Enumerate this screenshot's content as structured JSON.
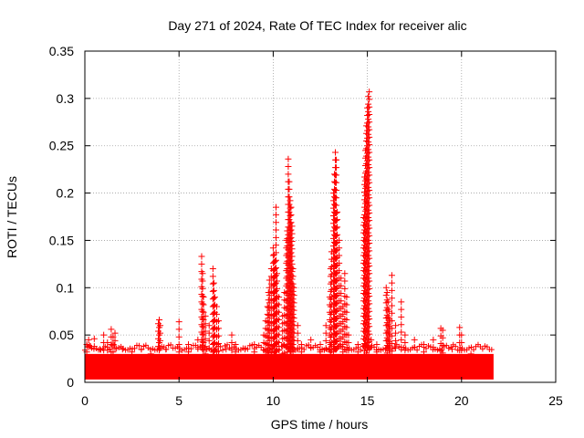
{
  "chart_data": {
    "type": "scatter",
    "title": "Day 271 of 2024, Rate Of TEC Index for receiver alic",
    "xlabel": "GPS time / hours",
    "ylabel": "ROTI / TECUs",
    "xlim": [
      0,
      25
    ],
    "ylim": [
      0,
      0.35
    ],
    "xticks": [
      0,
      5,
      10,
      15,
      20,
      25
    ],
    "yticks": [
      0,
      0.05,
      0.1,
      0.15,
      0.2,
      0.25,
      0.3,
      0.35
    ],
    "grid": true,
    "legend": "none",
    "marker": "plus",
    "color": "#ff0000",
    "baseline_band": {
      "x_range": [
        0,
        21.7
      ],
      "y_range": [
        0.003,
        0.03
      ]
    },
    "series": [
      {
        "values": [
          [
            0.1,
            0.04
          ],
          [
            0.2,
            0.045
          ],
          [
            0.3,
            0.038
          ],
          [
            0.5,
            0.046
          ],
          [
            0.8,
            0.035
          ],
          [
            1.0,
            0.05
          ],
          [
            1.2,
            0.042
          ],
          [
            1.4,
            0.056
          ],
          [
            1.5,
            0.048
          ],
          [
            1.6,
            0.052
          ],
          [
            2.0,
            0.035
          ],
          [
            2.5,
            0.032
          ],
          [
            3.0,
            0.035
          ],
          [
            3.5,
            0.03
          ],
          [
            3.9,
            0.062
          ],
          [
            3.95,
            0.066
          ],
          [
            4.0,
            0.06
          ],
          [
            4.3,
            0.035
          ],
          [
            5.0,
            0.064
          ],
          [
            5.5,
            0.04
          ],
          [
            6.0,
            0.045
          ],
          [
            6.2,
            0.133
          ],
          [
            6.25,
            0.115
          ],
          [
            6.3,
            0.09
          ],
          [
            6.4,
            0.07
          ],
          [
            6.6,
            0.06
          ],
          [
            6.8,
            0.12
          ],
          [
            6.85,
            0.105
          ],
          [
            6.9,
            0.09
          ],
          [
            7.0,
            0.08
          ],
          [
            7.1,
            0.065
          ],
          [
            7.5,
            0.035
          ],
          [
            7.8,
            0.05
          ],
          [
            8.0,
            0.04
          ],
          [
            8.5,
            0.035
          ],
          [
            9.0,
            0.04
          ],
          [
            9.5,
            0.05
          ],
          [
            9.6,
            0.065
          ],
          [
            9.7,
            0.08
          ],
          [
            9.75,
            0.095
          ],
          [
            9.8,
            0.108
          ],
          [
            9.9,
            0.12
          ],
          [
            10.0,
            0.142
          ],
          [
            10.05,
            0.135
          ],
          [
            10.1,
            0.128
          ],
          [
            10.15,
            0.185
          ],
          [
            10.2,
            0.115
          ],
          [
            10.3,
            0.09
          ],
          [
            10.5,
            0.07
          ],
          [
            10.6,
            0.095
          ],
          [
            10.7,
            0.15
          ],
          [
            10.75,
            0.16
          ],
          [
            10.8,
            0.236
          ],
          [
            10.85,
            0.212
          ],
          [
            10.9,
            0.192
          ],
          [
            10.95,
            0.185
          ],
          [
            11.0,
            0.165
          ],
          [
            11.05,
            0.12
          ],
          [
            11.1,
            0.1
          ],
          [
            11.3,
            0.06
          ],
          [
            11.5,
            0.04
          ],
          [
            12.0,
            0.045
          ],
          [
            12.5,
            0.04
          ],
          [
            12.8,
            0.06
          ],
          [
            13.0,
            0.09
          ],
          [
            13.05,
            0.12
          ],
          [
            13.1,
            0.138
          ],
          [
            13.2,
            0.2
          ],
          [
            13.25,
            0.22
          ],
          [
            13.3,
            0.243
          ],
          [
            13.35,
            0.235
          ],
          [
            13.4,
            0.18
          ],
          [
            13.5,
            0.15
          ],
          [
            13.6,
            0.11
          ],
          [
            13.7,
            0.08
          ],
          [
            13.8,
            0.115
          ],
          [
            13.9,
            0.09
          ],
          [
            14.0,
            0.05
          ],
          [
            14.5,
            0.04
          ],
          [
            14.8,
            0.174
          ],
          [
            14.85,
            0.217
          ],
          [
            14.9,
            0.245
          ],
          [
            14.95,
            0.271
          ],
          [
            15.0,
            0.29
          ],
          [
            15.05,
            0.302
          ],
          [
            15.1,
            0.307
          ],
          [
            15.2,
            0.045
          ],
          [
            15.5,
            0.04
          ],
          [
            16.0,
            0.1
          ],
          [
            16.05,
            0.095
          ],
          [
            16.1,
            0.085
          ],
          [
            16.15,
            0.075
          ],
          [
            16.2,
            0.065
          ],
          [
            16.3,
            0.113
          ],
          [
            16.5,
            0.06
          ],
          [
            16.8,
            0.085
          ],
          [
            17.0,
            0.05
          ],
          [
            17.5,
            0.045
          ],
          [
            18.0,
            0.04
          ],
          [
            18.5,
            0.045
          ],
          [
            18.9,
            0.057
          ],
          [
            19.0,
            0.055
          ],
          [
            19.5,
            0.035
          ],
          [
            19.9,
            0.058
          ],
          [
            20.0,
            0.05
          ],
          [
            20.5,
            0.03
          ],
          [
            21.0,
            0.025
          ],
          [
            21.5,
            0.024
          ]
        ]
      }
    ]
  }
}
